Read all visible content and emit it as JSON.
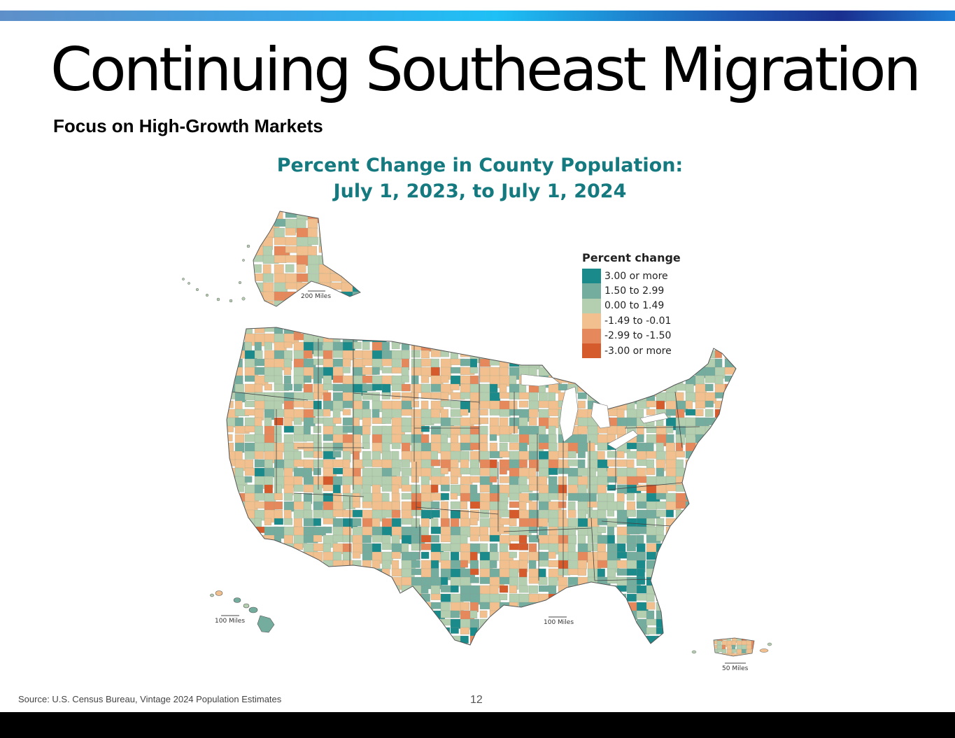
{
  "slide": {
    "title": "Continuing Southeast Migration",
    "subtitle": "Focus on High-Growth Markets",
    "source": "Source: U.S. Census Bureau, Vintage 2024 Population Estimates",
    "page_number": "12"
  },
  "map": {
    "title_line1": "Percent Change in County Population:",
    "title_line2": "July 1, 2023, to July 1, 2024",
    "legend": {
      "title": "Percent change",
      "items": [
        {
          "label": "3.00 or more",
          "color": "#1b8a8a"
        },
        {
          "label": "1.50 to 2.99",
          "color": "#74ad9e"
        },
        {
          "label": "0.00 to 1.49",
          "color": "#b4cfb0"
        },
        {
          "label": "-1.49 to -0.01",
          "color": "#f1c08e"
        },
        {
          "label": "-2.99 to -1.50",
          "color": "#e5895c"
        },
        {
          "label": "-3.00 or more",
          "color": "#d55a2c"
        }
      ]
    },
    "scale_bars": {
      "alaska": "200 Miles",
      "hawaii": "100 Miles",
      "contiguous": "100 Miles",
      "puerto_rico": "50 Miles"
    }
  },
  "colors": {
    "accent_bar_start": "#5f8fc9",
    "accent_bar_end": "#1e7fd6",
    "map_title": "#147a80"
  }
}
